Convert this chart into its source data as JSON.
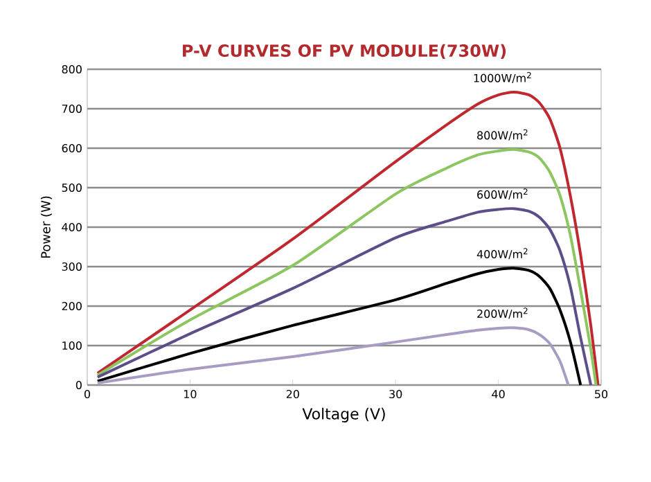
{
  "chart_data": {
    "type": "line",
    "title": "P-V CURVES OF PV MODULE(730W)",
    "xlabel": "Voltage (V)",
    "ylabel": "Power (W)",
    "xlim": [
      0,
      50
    ],
    "ylim": [
      0,
      800
    ],
    "xticks": [
      0,
      10,
      20,
      30,
      40,
      50
    ],
    "yticks": [
      0,
      100,
      200,
      300,
      400,
      500,
      600,
      700,
      800
    ],
    "grid": "y",
    "marker": "none",
    "line_style": "solid",
    "series": [
      {
        "name": "1000W/m$^{2}$",
        "color": "#c0282f",
        "x": [
          1,
          10,
          20,
          30,
          35,
          38,
          40,
          41.5,
          43,
          44,
          45,
          46,
          47,
          48,
          49,
          49.7
        ],
        "values": [
          30,
          190,
          370,
          566,
          660,
          712,
          735,
          742,
          735,
          715,
          675,
          600,
          480,
          330,
          150,
          0
        ]
      },
      {
        "name": "800W/m$^{2}$",
        "color": "#8cc660",
        "x": [
          1,
          10,
          20,
          30,
          35,
          38,
          40,
          41.5,
          43,
          44,
          45,
          46,
          47,
          48,
          49,
          49.5
        ],
        "values": [
          25,
          165,
          303,
          484,
          550,
          583,
          593,
          597,
          590,
          575,
          540,
          480,
          380,
          240,
          90,
          0
        ]
      },
      {
        "name": "600W/m$^{2}$",
        "color": "#5d4e8a",
        "x": [
          1,
          10,
          20,
          30,
          35,
          38,
          40,
          41.5,
          43,
          44,
          45,
          46,
          47,
          48,
          49
        ],
        "values": [
          20,
          130,
          245,
          373,
          415,
          438,
          445,
          447,
          440,
          425,
          395,
          340,
          250,
          120,
          0
        ]
      },
      {
        "name": "400W/m$^{2}$",
        "color": "#000000",
        "x": [
          1,
          10,
          20,
          30,
          35,
          38,
          40,
          41.5,
          43,
          44,
          45,
          46,
          47,
          48
        ],
        "values": [
          10,
          80,
          151,
          216,
          258,
          282,
          293,
          296,
          290,
          275,
          245,
          190,
          110,
          0
        ]
      },
      {
        "name": "200W/m$^{2}$",
        "color": "#a89cc4",
        "x": [
          1,
          10,
          20,
          30,
          35,
          38,
          40,
          41.5,
          43,
          44,
          45,
          46,
          46.8
        ],
        "values": [
          5,
          40,
          72,
          109,
          128,
          139,
          144,
          145,
          140,
          128,
          105,
          60,
          0
        ]
      }
    ]
  }
}
